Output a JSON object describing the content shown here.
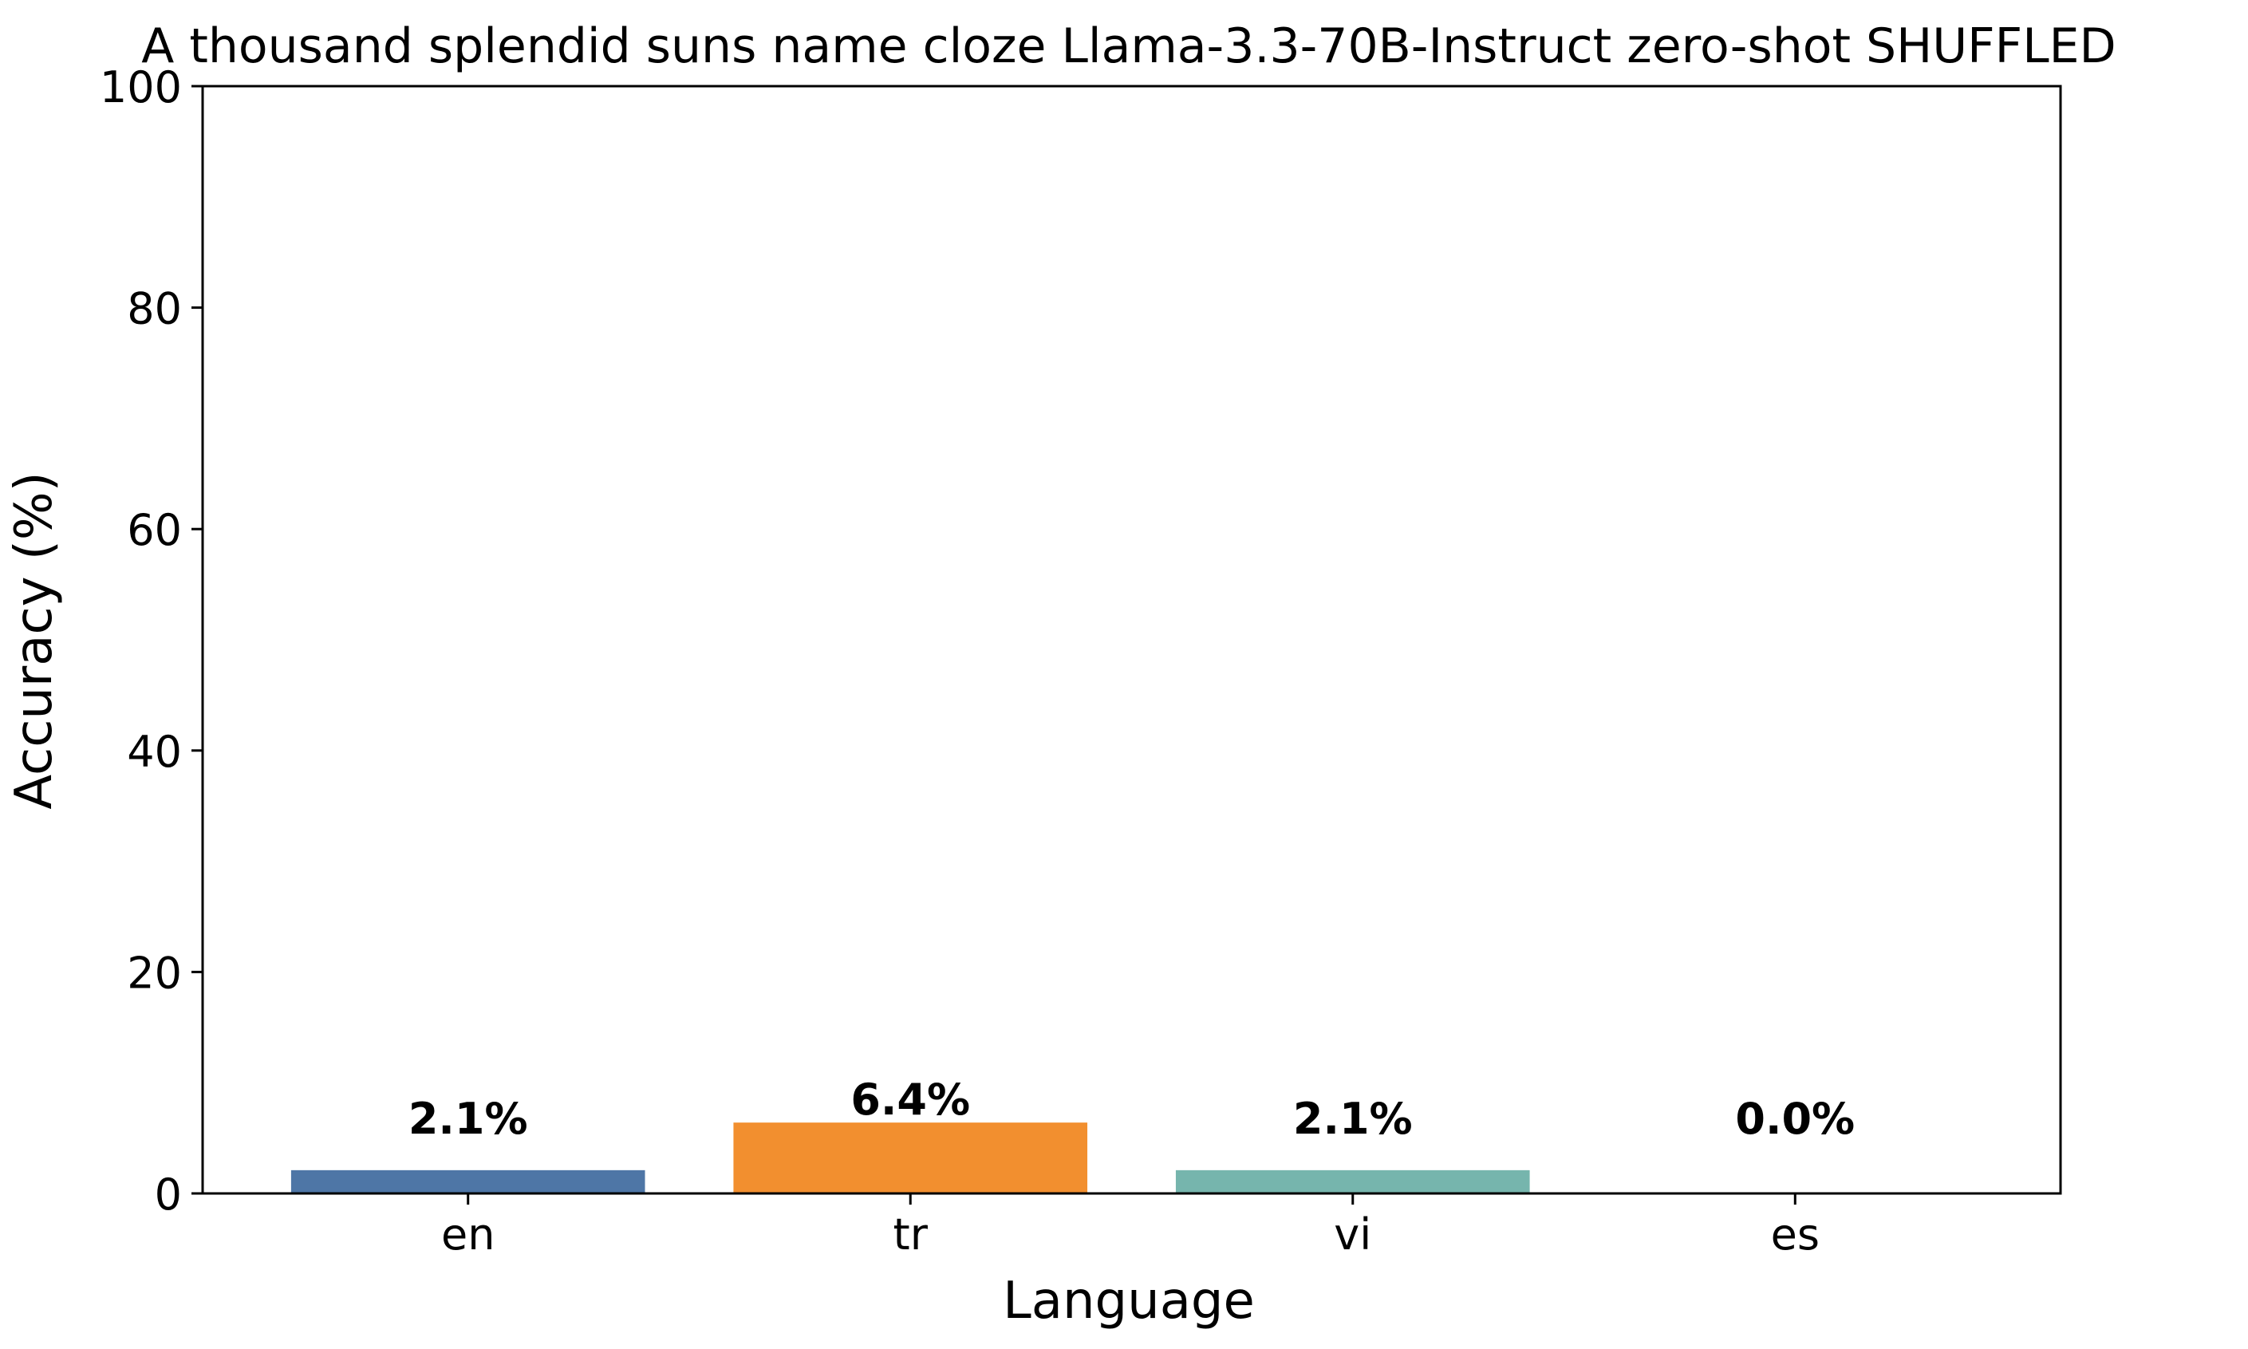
{
  "chart_data": {
    "type": "bar",
    "title": "A thousand splendid suns name cloze Llama-3.3-70B-Instruct zero-shot SHUFFLED",
    "xlabel": "Language",
    "ylabel": "Accuracy (%)",
    "categories": [
      "en",
      "tr",
      "vi",
      "es"
    ],
    "values": [
      2.1,
      6.4,
      2.1,
      0.0
    ],
    "value_labels": [
      "2.1%",
      "6.4%",
      "2.1%",
      "0.0%"
    ],
    "colors": [
      "#4e76a6",
      "#f28f2f",
      "#76b5ad",
      "#e15759"
    ],
    "ylim": [
      0,
      100
    ],
    "yticks": [
      0,
      20,
      40,
      60,
      80,
      100
    ],
    "ytick_labels": [
      "0",
      "20",
      "40",
      "60",
      "80",
      "100"
    ],
    "grid": false,
    "legend": "none"
  }
}
